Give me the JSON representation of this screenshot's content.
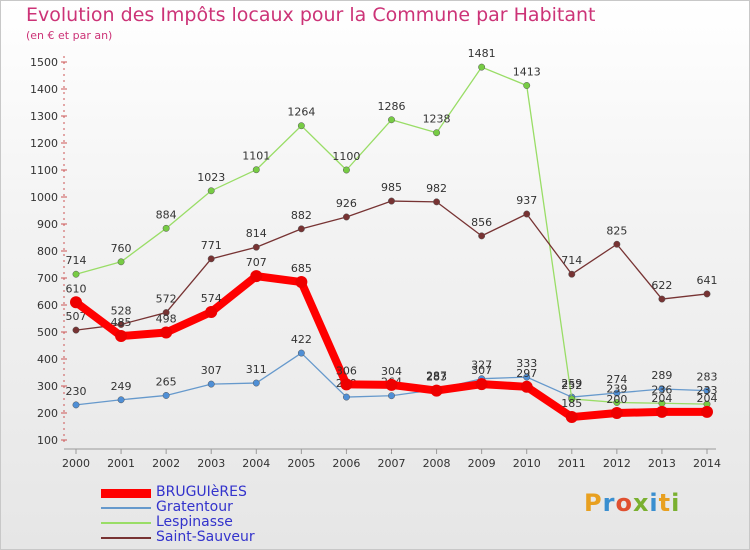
{
  "title": "Evolution des Impôts locaux pour la Commune par Habitant",
  "subtitle": "(en € et par an)",
  "logo": {
    "text": "Proxiti",
    "letters": [
      {
        "ch": "P",
        "color": "#e8a020"
      },
      {
        "ch": "r",
        "color": "#3a8fd0"
      },
      {
        "ch": "o",
        "color": "#e05030"
      },
      {
        "ch": "x",
        "color": "#7ab030"
      },
      {
        "ch": "i",
        "color": "#3a8fd0"
      },
      {
        "ch": "t",
        "color": "#e8a020"
      },
      {
        "ch": "i",
        "color": "#7ab030"
      }
    ]
  },
  "chart_data": {
    "type": "line",
    "x": [
      "2000",
      "2001",
      "2002",
      "2003",
      "2004",
      "2005",
      "2006",
      "2007",
      "2008",
      "2009",
      "2010",
      "2011",
      "2012",
      "2013",
      "2014"
    ],
    "ylim": [
      100,
      1500
    ],
    "yticks": [
      100,
      200,
      300,
      400,
      500,
      600,
      700,
      800,
      900,
      1000,
      1100,
      1200,
      1300,
      1400,
      1500
    ],
    "grid": false,
    "legend_position": "bottom-left",
    "series": [
      {
        "name": "BRUGUIèRES",
        "color": "#ff0000",
        "marker": "#ee0000",
        "width": 8,
        "r": 6,
        "values": [
          610,
          485,
          498,
          574,
          707,
          685,
          306,
          304,
          283,
          307,
          297,
          185,
          200,
          204,
          204
        ]
      },
      {
        "name": "Gratentour",
        "color": "#6699cc",
        "marker": "#4f8fd6",
        "width": 1.3,
        "r": 3.2,
        "values": [
          230,
          249,
          265,
          307,
          311,
          422,
          259,
          264,
          287,
          327,
          333,
          259,
          274,
          289,
          283
        ]
      },
      {
        "name": "Lespinasse",
        "color": "#99dd66",
        "marker": "#77cc44",
        "width": 1.3,
        "r": 3.2,
        "values": [
          714,
          760,
          884,
          1023,
          1101,
          1264,
          1100,
          1286,
          1238,
          1481,
          1413,
          252,
          239,
          236,
          233
        ]
      },
      {
        "name": "Saint-Sauveur",
        "color": "#773333",
        "marker": "#773333",
        "width": 1.3,
        "r": 3.2,
        "values": [
          507,
          528,
          572,
          771,
          814,
          882,
          926,
          985,
          982,
          856,
          937,
          714,
          825,
          622,
          641
        ]
      }
    ]
  }
}
